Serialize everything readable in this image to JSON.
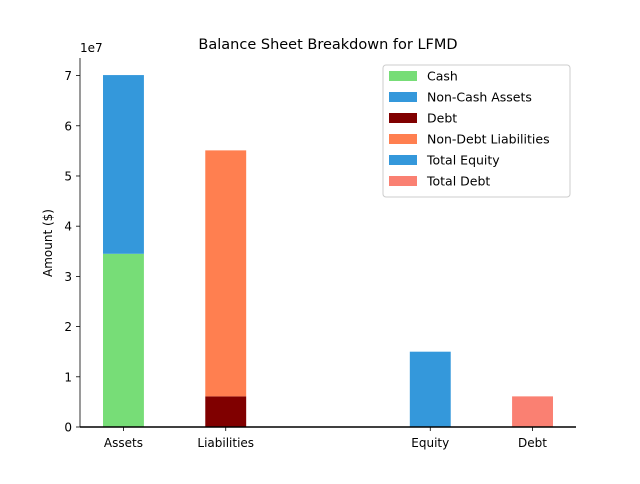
{
  "chart_data": {
    "type": "bar",
    "stacked": true,
    "title": "Balance Sheet Breakdown for LFMD",
    "xlabel": "",
    "ylabel": "Amount ($)",
    "y_offset_text": "1e7",
    "y_scale": 10000000,
    "ylim": [
      0,
      73500000
    ],
    "yticks": [
      0,
      10000000,
      20000000,
      30000000,
      40000000,
      50000000,
      60000000,
      70000000
    ],
    "ytick_labels": [
      "0",
      "1",
      "2",
      "3",
      "4",
      "5",
      "6",
      "7"
    ],
    "categories": [
      "Assets",
      "Liabilities",
      "Equity",
      "Debt"
    ],
    "x_positions": [
      0,
      1,
      3,
      4
    ],
    "grid": false,
    "legend_position": "top-right",
    "series": [
      {
        "name": "Cash",
        "color": "#77dd77",
        "values": [
          34500000,
          null,
          null,
          null
        ],
        "base": [
          0,
          null,
          null,
          null
        ]
      },
      {
        "name": "Non-Cash Assets",
        "color": "#3498db",
        "values": [
          35600000,
          null,
          null,
          null
        ],
        "base": [
          34500000,
          null,
          null,
          null
        ]
      },
      {
        "name": "Debt",
        "color": "#800000",
        "values": [
          null,
          6100000,
          null,
          null
        ],
        "base": [
          null,
          0,
          null,
          null
        ]
      },
      {
        "name": "Non-Debt Liabilities",
        "color": "#ff7f50",
        "values": [
          null,
          49000000,
          null,
          null
        ],
        "base": [
          null,
          6100000,
          null,
          null
        ]
      },
      {
        "name": "Total Equity",
        "color": "#3498db",
        "values": [
          null,
          null,
          15000000,
          null
        ],
        "base": [
          null,
          null,
          0,
          null
        ]
      },
      {
        "name": "Total Debt",
        "color": "#fa8072",
        "values": [
          null,
          null,
          null,
          6100000
        ],
        "base": [
          null,
          null,
          null,
          0
        ]
      }
    ]
  }
}
